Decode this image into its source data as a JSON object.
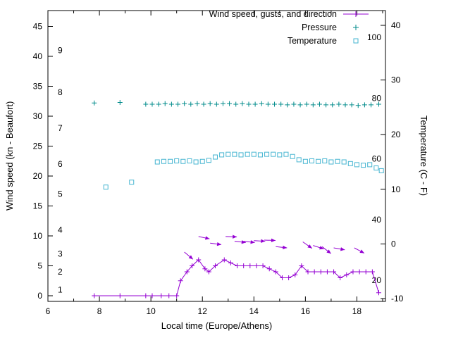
{
  "figure": {
    "x_label": "Local time (Europe/Athens)",
    "y_left_label": "Wind speed (kn - Beaufort)",
    "y_right_label": "Temperature (C - F)",
    "legend": [
      {
        "label": "Wind speed, gusts, and direction",
        "key": "wind"
      },
      {
        "label": "Pressure",
        "key": "pressure"
      },
      {
        "label": "Temperature",
        "key": "temperature"
      }
    ]
  },
  "colors": {
    "wind": "#9400d3",
    "pressure": "#008b8b",
    "temperature": "#46b5d1",
    "axis": "#000000",
    "background": "#ffffff"
  },
  "chart_data": {
    "type": "line",
    "title": "",
    "xlabel": "Local time (Europe/Athens)",
    "ylabel_left": "Wind speed (kn - Beaufort)",
    "ylabel_right": "Temperature (C - F)",
    "x_range": [
      6,
      19.11
    ],
    "x_ticks": [
      6,
      8,
      10,
      12,
      14,
      16,
      18
    ],
    "x_minor_ticks": [
      7,
      9,
      11,
      13,
      15,
      17,
      19
    ],
    "y_left_range_kn": [
      0,
      47.5
    ],
    "y_left_ticks_kn": [
      0,
      5,
      10,
      15,
      20,
      25,
      30,
      35,
      40,
      45
    ],
    "beaufort_scale": [
      {
        "label": "1",
        "kn": 1
      },
      {
        "label": "2",
        "kn": 4
      },
      {
        "label": "3",
        "kn": 7
      },
      {
        "label": "4",
        "kn": 11
      },
      {
        "label": "5",
        "kn": 17
      },
      {
        "label": "6",
        "kn": 22
      },
      {
        "label": "7",
        "kn": 28
      },
      {
        "label": "8",
        "kn": 34
      },
      {
        "label": "9",
        "kn": 41
      }
    ],
    "y_right_range_c": [
      -10,
      42
    ],
    "y_right_ticks_c": [
      -10,
      0,
      10,
      20,
      30,
      40
    ],
    "fahrenheit_scale": [
      20,
      40,
      60,
      80,
      100
    ],
    "grid": false,
    "legend_position": "top-right-inside",
    "series": [
      {
        "name": "Wind speed, gusts, and direction",
        "type": "line+points",
        "marker": "plus",
        "axis": "left",
        "color_key": "wind",
        "points": [
          [
            7.8,
            0
          ],
          [
            8.8,
            0
          ],
          [
            9.8,
            0
          ],
          [
            10.05,
            0
          ],
          [
            10.4,
            0
          ],
          [
            10.7,
            0
          ],
          [
            11.0,
            0
          ],
          [
            11.15,
            2.5
          ],
          [
            11.4,
            4
          ],
          [
            11.6,
            5
          ],
          [
            11.85,
            6
          ],
          [
            12.1,
            4.5
          ],
          [
            12.25,
            4
          ],
          [
            12.5,
            5
          ],
          [
            12.85,
            6
          ],
          [
            13.1,
            5.5
          ],
          [
            13.35,
            5
          ],
          [
            13.6,
            5
          ],
          [
            13.85,
            5
          ],
          [
            14.1,
            5
          ],
          [
            14.35,
            5
          ],
          [
            14.6,
            4.5
          ],
          [
            14.85,
            4
          ],
          [
            15.1,
            3
          ],
          [
            15.35,
            3
          ],
          [
            15.6,
            3.5
          ],
          [
            15.85,
            5
          ],
          [
            16.1,
            4
          ],
          [
            16.35,
            4
          ],
          [
            16.6,
            4
          ],
          [
            16.85,
            4
          ],
          [
            17.1,
            4
          ],
          [
            17.35,
            3
          ],
          [
            17.6,
            3.5
          ],
          [
            17.85,
            4
          ],
          [
            18.1,
            4
          ],
          [
            18.35,
            4
          ],
          [
            18.6,
            4
          ],
          [
            18.85,
            0.5
          ]
        ]
      },
      {
        "name": "Wind direction vectors",
        "type": "vectors",
        "axis": "left",
        "color_key": "wind",
        "vectors": [
          [
            11.3,
            7.3,
            40
          ],
          [
            11.85,
            9.9,
            12
          ],
          [
            12.3,
            8.8,
            8
          ],
          [
            12.9,
            9.9,
            2
          ],
          [
            13.25,
            9.1,
            6
          ],
          [
            13.6,
            9.1,
            6
          ],
          [
            14.0,
            9.2,
            3
          ],
          [
            14.4,
            9.3,
            2
          ],
          [
            14.85,
            8.2,
            6
          ],
          [
            15.9,
            9.0,
            35
          ],
          [
            16.3,
            8.4,
            18
          ],
          [
            16.65,
            8.2,
            38
          ],
          [
            17.1,
            8.0,
            10
          ],
          [
            17.9,
            8.0,
            28
          ]
        ]
      },
      {
        "name": "Pressure",
        "type": "points",
        "marker": "plus",
        "axis": "left",
        "color_key": "pressure",
        "points": [
          [
            7.8,
            32.2
          ],
          [
            8.8,
            32.3
          ],
          [
            9.8,
            32.0
          ],
          [
            10.05,
            32.0
          ],
          [
            10.3,
            32.0
          ],
          [
            10.55,
            32.1
          ],
          [
            10.8,
            32.0
          ],
          [
            11.05,
            32.0
          ],
          [
            11.3,
            32.1
          ],
          [
            11.55,
            32.0
          ],
          [
            11.8,
            32.1
          ],
          [
            12.05,
            32.0
          ],
          [
            12.3,
            32.1
          ],
          [
            12.55,
            32.0
          ],
          [
            12.8,
            32.1
          ],
          [
            13.05,
            32.1
          ],
          [
            13.3,
            32.0
          ],
          [
            13.55,
            32.1
          ],
          [
            13.8,
            32.0
          ],
          [
            14.05,
            32.0
          ],
          [
            14.3,
            32.1
          ],
          [
            14.55,
            32.0
          ],
          [
            14.8,
            32.0
          ],
          [
            15.05,
            32.0
          ],
          [
            15.3,
            31.9
          ],
          [
            15.55,
            32.0
          ],
          [
            15.8,
            31.9
          ],
          [
            16.05,
            32.0
          ],
          [
            16.3,
            31.9
          ],
          [
            16.55,
            32.0
          ],
          [
            16.8,
            31.9
          ],
          [
            17.05,
            31.9
          ],
          [
            17.3,
            32.0
          ],
          [
            17.55,
            31.9
          ],
          [
            17.8,
            31.9
          ],
          [
            18.05,
            31.8
          ],
          [
            18.3,
            31.9
          ],
          [
            18.55,
            31.9
          ],
          [
            18.85,
            32.0
          ]
        ]
      },
      {
        "name": "Temperature",
        "type": "points",
        "marker": "square",
        "axis": "right",
        "color_key": "temperature",
        "points": [
          [
            8.25,
            10.4
          ],
          [
            9.25,
            11.3
          ],
          [
            10.25,
            15.0
          ],
          [
            10.5,
            15.1
          ],
          [
            10.75,
            15.1
          ],
          [
            11.0,
            15.2
          ],
          [
            11.25,
            15.1
          ],
          [
            11.5,
            15.2
          ],
          [
            11.75,
            15.0
          ],
          [
            12.0,
            15.1
          ],
          [
            12.25,
            15.3
          ],
          [
            12.5,
            15.9
          ],
          [
            12.75,
            16.3
          ],
          [
            13.0,
            16.4
          ],
          [
            13.25,
            16.4
          ],
          [
            13.5,
            16.3
          ],
          [
            13.75,
            16.4
          ],
          [
            14.0,
            16.4
          ],
          [
            14.25,
            16.3
          ],
          [
            14.5,
            16.4
          ],
          [
            14.75,
            16.4
          ],
          [
            15.0,
            16.3
          ],
          [
            15.25,
            16.4
          ],
          [
            15.5,
            16.0
          ],
          [
            15.75,
            15.4
          ],
          [
            16.0,
            15.1
          ],
          [
            16.25,
            15.2
          ],
          [
            16.5,
            15.1
          ],
          [
            16.75,
            15.2
          ],
          [
            17.0,
            15.0
          ],
          [
            17.25,
            15.1
          ],
          [
            17.5,
            15.0
          ],
          [
            17.75,
            14.7
          ],
          [
            18.0,
            14.5
          ],
          [
            18.25,
            14.4
          ],
          [
            18.5,
            14.5
          ],
          [
            18.75,
            13.9
          ],
          [
            18.95,
            13.4
          ]
        ]
      }
    ]
  }
}
